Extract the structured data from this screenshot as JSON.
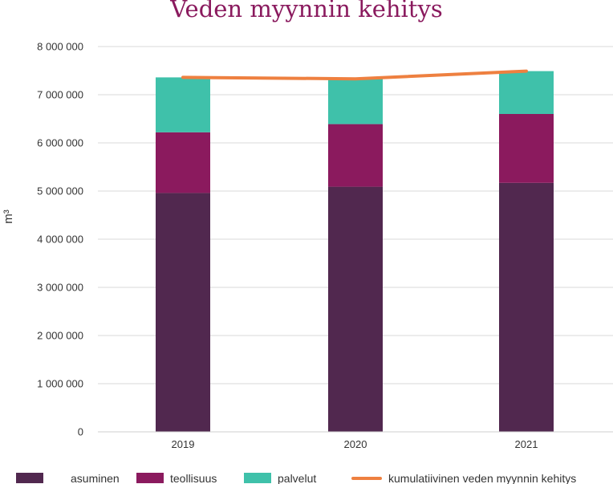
{
  "chart_data": {
    "type": "bar",
    "stacked": true,
    "title": "Veden myynnin kehitys",
    "xlabel": "",
    "ylabel": "m³",
    "categories": [
      "2019",
      "2020",
      "2021"
    ],
    "ylim": [
      0,
      8000000
    ],
    "yticks": [
      0,
      1000000,
      2000000,
      3000000,
      4000000,
      5000000,
      6000000,
      7000000,
      8000000
    ],
    "ytick_labels": [
      "0",
      "1 000 000",
      "2 000 000",
      "3 000 000",
      "4 000 000",
      "5 000 000",
      "6 000 000",
      "7 000 000",
      "8 000 000"
    ],
    "grid": true,
    "legend_position": "bottom",
    "series": [
      {
        "name": "asuminen",
        "type": "bar",
        "color": "#51284f",
        "values": [
          4960000,
          5090000,
          5170000
        ]
      },
      {
        "name": "teollisuus",
        "type": "bar",
        "color": "#8b1a5e",
        "values": [
          1260000,
          1300000,
          1430000
        ]
      },
      {
        "name": "palvelut",
        "type": "bar",
        "color": "#3fc1aa",
        "values": [
          1140000,
          940000,
          890000
        ]
      },
      {
        "name": "kumulatiivinen veden myynnin kehitys",
        "type": "line",
        "color": "#ee8040",
        "values": [
          7360000,
          7330000,
          7490000
        ]
      }
    ]
  }
}
